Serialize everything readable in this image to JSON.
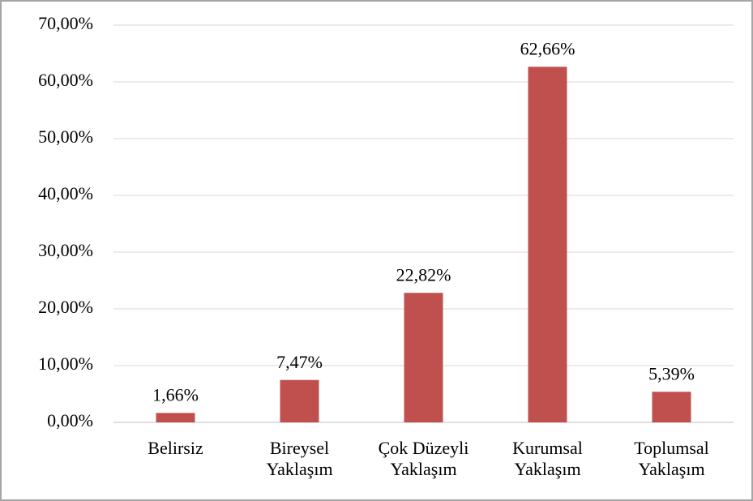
{
  "chart_data": {
    "type": "bar",
    "categories": [
      "Belirsiz",
      "Bireysel Yaklaşım",
      "Çok Düzeyli Yaklaşım",
      "Kurumsal Yaklaşım",
      "Toplumsal Yaklaşım"
    ],
    "values": [
      1.66,
      7.47,
      22.82,
      62.66,
      5.39
    ],
    "value_labels": [
      "1,66%",
      "7,47%",
      "22,82%",
      "62,66%",
      "5,39%"
    ],
    "color": "#c0504d",
    "ylim": [
      0,
      70
    ],
    "yticks": [
      {
        "value": 0,
        "label": "0,00%"
      },
      {
        "value": 10,
        "label": "10,00%"
      },
      {
        "value": 20,
        "label": "20,00%"
      },
      {
        "value": 30,
        "label": "30,00%"
      },
      {
        "value": 40,
        "label": "40,00%"
      },
      {
        "value": 50,
        "label": "50,00%"
      },
      {
        "value": 60,
        "label": "60,00%"
      },
      {
        "value": 70,
        "label": "70,00%"
      }
    ],
    "grid": true
  }
}
